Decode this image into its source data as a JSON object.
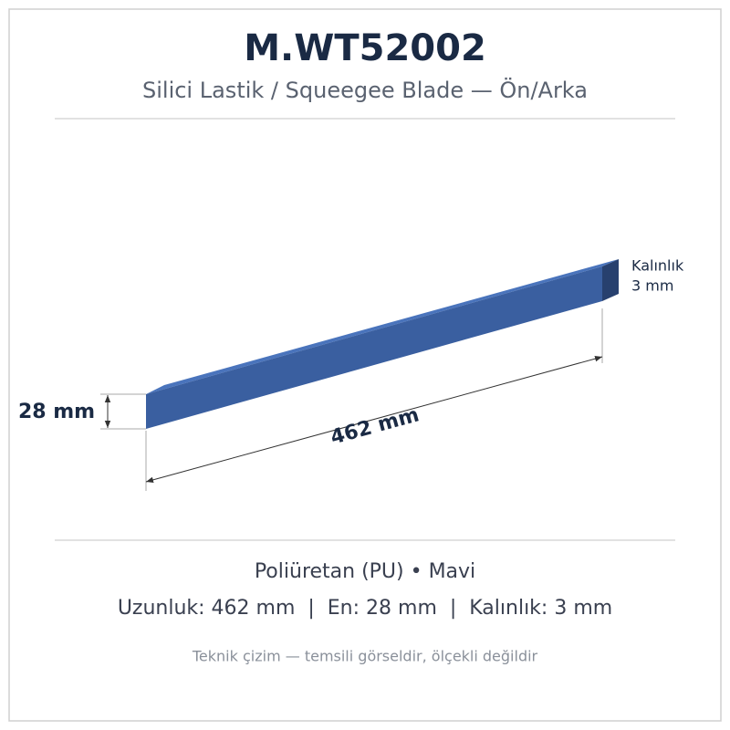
{
  "header": {
    "title": "M.WT52002",
    "subtitle": "Silici Lastik / Squeegee Blade — Ön/Arka"
  },
  "drawing": {
    "thickness_label": [
      "Kalınlık",
      "3 mm"
    ],
    "width_label": "28 mm",
    "length_label": "462 mm"
  },
  "footer": {
    "material": "Poliüretan (PU) • Mavi",
    "specs": "Uzunluk: 462 mm  |  En: 28 mm  |  Kalınlık: 3 mm",
    "note": "Teknik çizim — temsili görseldir, ölçekli değildir"
  }
}
